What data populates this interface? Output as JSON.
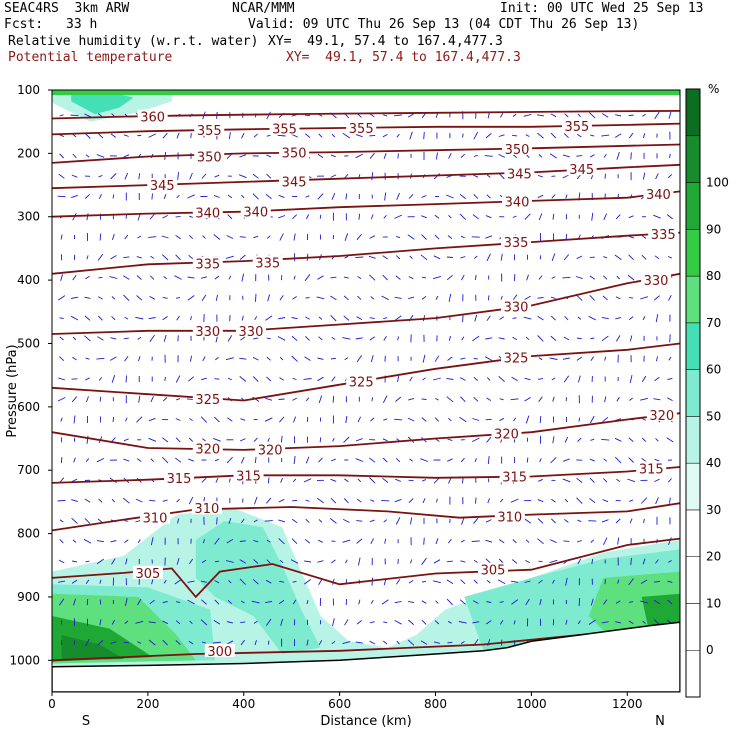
{
  "header": {
    "model": "SEAC4RS  3km ARW",
    "org": "NCAR/MMM",
    "init": "Init: 00 UTC Wed 25 Sep 13",
    "fcst_label": "Fcst:",
    "fcst_value": "33 h",
    "valid": "Valid: 09 UTC Thu 26 Sep 13 (04 CDT Thu 26 Sep 13)",
    "field1_name": "Relative humidity (w.r.t. water)",
    "field1_xy": "XY=  49.1, 57.4 to 167.4,477.3",
    "field2_name": "Potential temperature",
    "field2_xy": "XY=  49.1, 57.4 to 167.4,477.3"
  },
  "colors": {
    "theta_line": "#7a1212",
    "vector": "#1a1ad0",
    "rh_scale": [
      "#ffffff",
      "#ffffff",
      "#ffffff",
      "#ffffff",
      "#e0fbf4",
      "#b8f4e6",
      "#7eebd0",
      "#44dfb5",
      "#5ee07e",
      "#33cc44",
      "#20a834",
      "#168c2c",
      "#0d6e22"
    ]
  },
  "chart_data": {
    "type": "contour-cross-section",
    "xlabel": "Distance (km)",
    "ylabel": "Pressure (hPa)",
    "xlim": [
      0,
      1310
    ],
    "ylim": [
      1050,
      100
    ],
    "x_ticks": [
      0,
      200,
      400,
      600,
      800,
      1000,
      1200
    ],
    "y_ticks": [
      100,
      200,
      300,
      400,
      500,
      600,
      700,
      800,
      900,
      1000
    ],
    "x_end_labels": {
      "left": "S",
      "right": "N"
    },
    "colorbar": {
      "unit": "%",
      "labels": [
        "100",
        "90",
        "80",
        "70",
        "60",
        "50",
        "40",
        "30",
        "20",
        "10",
        "0"
      ]
    },
    "theta_levels": [
      {
        "value": 300,
        "points": [
          [
            0,
            1000
          ],
          [
            300,
            990
          ],
          [
            600,
            985
          ],
          [
            900,
            975
          ],
          [
            1100,
            960
          ],
          [
            1310,
            950
          ]
        ],
        "labels": [
          [
            350,
            985,
            "300"
          ]
        ]
      },
      {
        "value": 305,
        "points": [
          [
            0,
            870
          ],
          [
            150,
            862
          ],
          [
            250,
            855
          ],
          [
            300,
            900
          ],
          [
            350,
            860
          ],
          [
            460,
            848
          ],
          [
            600,
            880
          ],
          [
            800,
            863
          ],
          [
            1000,
            857
          ],
          [
            1200,
            818
          ],
          [
            1310,
            808
          ]
        ],
        "labels": [
          [
            200,
            862,
            "305"
          ],
          [
            920,
            857,
            "305"
          ]
        ]
      },
      {
        "value": 310,
        "points": [
          [
            0,
            795
          ],
          [
            150,
            778
          ],
          [
            300,
            762
          ],
          [
            500,
            758
          ],
          [
            700,
            765
          ],
          [
            850,
            775
          ],
          [
            1000,
            770
          ],
          [
            1200,
            765
          ],
          [
            1310,
            752
          ]
        ],
        "labels": [
          [
            215,
            775,
            "310"
          ],
          [
            323,
            760,
            "310"
          ],
          [
            955,
            773,
            "310"
          ]
        ]
      },
      {
        "value": 315,
        "points": [
          [
            0,
            720
          ],
          [
            200,
            715
          ],
          [
            400,
            708
          ],
          [
            600,
            708
          ],
          [
            800,
            712
          ],
          [
            1000,
            710
          ],
          [
            1200,
            702
          ],
          [
            1310,
            695
          ]
        ],
        "labels": [
          [
            265,
            712,
            "315"
          ],
          [
            410,
            708,
            "315"
          ],
          [
            965,
            710,
            "315"
          ],
          [
            1250,
            697,
            "315"
          ]
        ]
      },
      {
        "value": 320,
        "points": [
          [
            0,
            640
          ],
          [
            200,
            665
          ],
          [
            400,
            668
          ],
          [
            600,
            662
          ],
          [
            800,
            650
          ],
          [
            1000,
            640
          ],
          [
            1200,
            620
          ],
          [
            1310,
            610
          ]
        ],
        "labels": [
          [
            325,
            666,
            "320"
          ],
          [
            455,
            667,
            "320"
          ],
          [
            948,
            642,
            "320"
          ],
          [
            1272,
            613,
            "320"
          ]
        ]
      },
      {
        "value": 325,
        "points": [
          [
            0,
            570
          ],
          [
            200,
            580
          ],
          [
            400,
            590
          ],
          [
            600,
            565
          ],
          [
            800,
            540
          ],
          [
            1000,
            520
          ],
          [
            1200,
            510
          ],
          [
            1310,
            500
          ]
        ],
        "labels": [
          [
            325,
            588,
            "325"
          ],
          [
            645,
            560,
            "325"
          ],
          [
            968,
            522,
            "325"
          ]
        ]
      },
      {
        "value": 330,
        "points": [
          [
            0,
            485
          ],
          [
            200,
            480
          ],
          [
            400,
            480
          ],
          [
            600,
            470
          ],
          [
            800,
            460
          ],
          [
            1000,
            440
          ],
          [
            1200,
            405
          ],
          [
            1310,
            390
          ]
        ],
        "labels": [
          [
            325,
            480,
            "330"
          ],
          [
            415,
            480,
            "330"
          ],
          [
            968,
            442,
            "330"
          ],
          [
            1260,
            400,
            "330"
          ]
        ]
      },
      {
        "value": 335,
        "points": [
          [
            0,
            390
          ],
          [
            200,
            375
          ],
          [
            400,
            370
          ],
          [
            600,
            362
          ],
          [
            800,
            350
          ],
          [
            1000,
            340
          ],
          [
            1200,
            330
          ],
          [
            1310,
            325
          ]
        ],
        "labels": [
          [
            325,
            374,
            "335"
          ],
          [
            450,
            372,
            "335"
          ],
          [
            968,
            340,
            "335"
          ],
          [
            1275,
            327,
            "335"
          ]
        ]
      },
      {
        "value": 340,
        "points": [
          [
            0,
            300
          ],
          [
            200,
            295
          ],
          [
            400,
            292
          ],
          [
            600,
            285
          ],
          [
            800,
            280
          ],
          [
            1000,
            275
          ],
          [
            1200,
            270
          ],
          [
            1310,
            260
          ]
        ],
        "labels": [
          [
            325,
            293,
            "340"
          ],
          [
            425,
            292,
            "340"
          ],
          [
            970,
            276,
            "340"
          ],
          [
            1265,
            264,
            "340"
          ]
        ]
      },
      {
        "value": 345,
        "points": [
          [
            0,
            255
          ],
          [
            200,
            250
          ],
          [
            400,
            245
          ],
          [
            600,
            240
          ],
          [
            800,
            235
          ],
          [
            1000,
            230
          ],
          [
            1200,
            222
          ],
          [
            1310,
            218
          ]
        ],
        "labels": [
          [
            230,
            250,
            "345"
          ],
          [
            505,
            244,
            "345"
          ],
          [
            975,
            232,
            "345"
          ],
          [
            1105,
            225,
            "345"
          ]
        ]
      },
      {
        "value": 350,
        "points": [
          [
            0,
            215
          ],
          [
            200,
            205
          ],
          [
            400,
            200
          ],
          [
            600,
            198
          ],
          [
            800,
            195
          ],
          [
            1000,
            192
          ],
          [
            1200,
            188
          ],
          [
            1310,
            186
          ]
        ],
        "labels": [
          [
            328,
            205,
            "350"
          ],
          [
            505,
            199,
            "350"
          ],
          [
            970,
            193,
            "350"
          ]
        ]
      },
      {
        "value": 355,
        "points": [
          [
            0,
            170
          ],
          [
            200,
            165
          ],
          [
            400,
            162
          ],
          [
            600,
            160
          ],
          [
            800,
            158
          ],
          [
            1000,
            158
          ],
          [
            1200,
            155
          ],
          [
            1310,
            153
          ]
        ],
        "labels": [
          [
            328,
            163,
            "355"
          ],
          [
            485,
            161,
            "355"
          ],
          [
            645,
            160,
            "355"
          ],
          [
            1095,
            157,
            "355"
          ]
        ]
      },
      {
        "value": 360,
        "points": [
          [
            0,
            145
          ],
          [
            150,
            142
          ],
          [
            300,
            140
          ],
          [
            500,
            138
          ],
          [
            800,
            136
          ],
          [
            1100,
            134
          ],
          [
            1310,
            133
          ]
        ],
        "labels": [
          [
            210,
            142,
            "360"
          ]
        ]
      }
    ],
    "rh_regions": [
      {
        "rh": 35,
        "points": [
          [
            0,
            120
          ],
          [
            80,
            150
          ],
          [
            180,
            135
          ],
          [
            250,
            118
          ],
          [
            250,
            100
          ],
          [
            0,
            100
          ]
        ]
      },
      {
        "rh": 55,
        "points": [
          [
            40,
            118
          ],
          [
            90,
            138
          ],
          [
            140,
            128
          ],
          [
            170,
            112
          ],
          [
            100,
            100
          ],
          [
            40,
            104
          ]
        ]
      },
      {
        "rh": 30,
        "points": [
          [
            150,
            835
          ],
          [
            260,
            770
          ],
          [
            380,
            760
          ],
          [
            480,
            790
          ],
          [
            520,
            860
          ],
          [
            560,
            930
          ],
          [
            620,
            970
          ],
          [
            700,
            980
          ],
          [
            760,
            960
          ],
          [
            820,
            920
          ],
          [
            1000,
            870
          ],
          [
            1150,
            830
          ],
          [
            1310,
            810
          ],
          [
            1310,
            990
          ],
          [
            0,
            1010
          ],
          [
            0,
            860
          ]
        ]
      },
      {
        "rh": 45,
        "points": [
          [
            300,
            810
          ],
          [
            360,
            780
          ],
          [
            440,
            790
          ],
          [
            480,
            850
          ],
          [
            520,
            920
          ],
          [
            560,
            980
          ],
          [
            480,
            990
          ],
          [
            420,
            930
          ],
          [
            340,
            900
          ],
          [
            300,
            870
          ]
        ]
      },
      {
        "rh": 45,
        "points": [
          [
            860,
            900
          ],
          [
            1000,
            870
          ],
          [
            1150,
            840
          ],
          [
            1310,
            825
          ],
          [
            1310,
            990
          ],
          [
            1100,
            985
          ],
          [
            900,
            985
          ]
        ]
      },
      {
        "rh": 45,
        "points": [
          [
            0,
            880
          ],
          [
            200,
            885
          ],
          [
            330,
            920
          ],
          [
            340,
            1000
          ],
          [
            0,
            1005
          ]
        ]
      },
      {
        "rh": 65,
        "points": [
          [
            0,
            895
          ],
          [
            180,
            900
          ],
          [
            260,
            960
          ],
          [
            300,
            1000
          ],
          [
            0,
            1005
          ]
        ]
      },
      {
        "rh": 65,
        "points": [
          [
            1150,
            870
          ],
          [
            1310,
            860
          ],
          [
            1310,
            985
          ],
          [
            1180,
            975
          ],
          [
            1120,
            930
          ]
        ]
      },
      {
        "rh": 85,
        "points": [
          [
            0,
            930
          ],
          [
            120,
            950
          ],
          [
            210,
            995
          ],
          [
            0,
            1002
          ]
        ]
      },
      {
        "rh": 85,
        "points": [
          [
            1230,
            900
          ],
          [
            1310,
            895
          ],
          [
            1310,
            980
          ],
          [
            1250,
            970
          ]
        ]
      },
      {
        "rh": 95,
        "points": [
          [
            20,
            960
          ],
          [
            100,
            975
          ],
          [
            150,
            998
          ],
          [
            20,
            1000
          ]
        ]
      }
    ],
    "terrain": [
      [
        0,
        1010
      ],
      [
        200,
        1008
      ],
      [
        400,
        1005
      ],
      [
        600,
        1000
      ],
      [
        700,
        995
      ],
      [
        800,
        990
      ],
      [
        900,
        985
      ],
      [
        950,
        980
      ],
      [
        1000,
        970
      ],
      [
        1050,
        965
      ],
      [
        1100,
        960
      ],
      [
        1200,
        950
      ],
      [
        1250,
        945
      ],
      [
        1310,
        940
      ]
    ]
  }
}
